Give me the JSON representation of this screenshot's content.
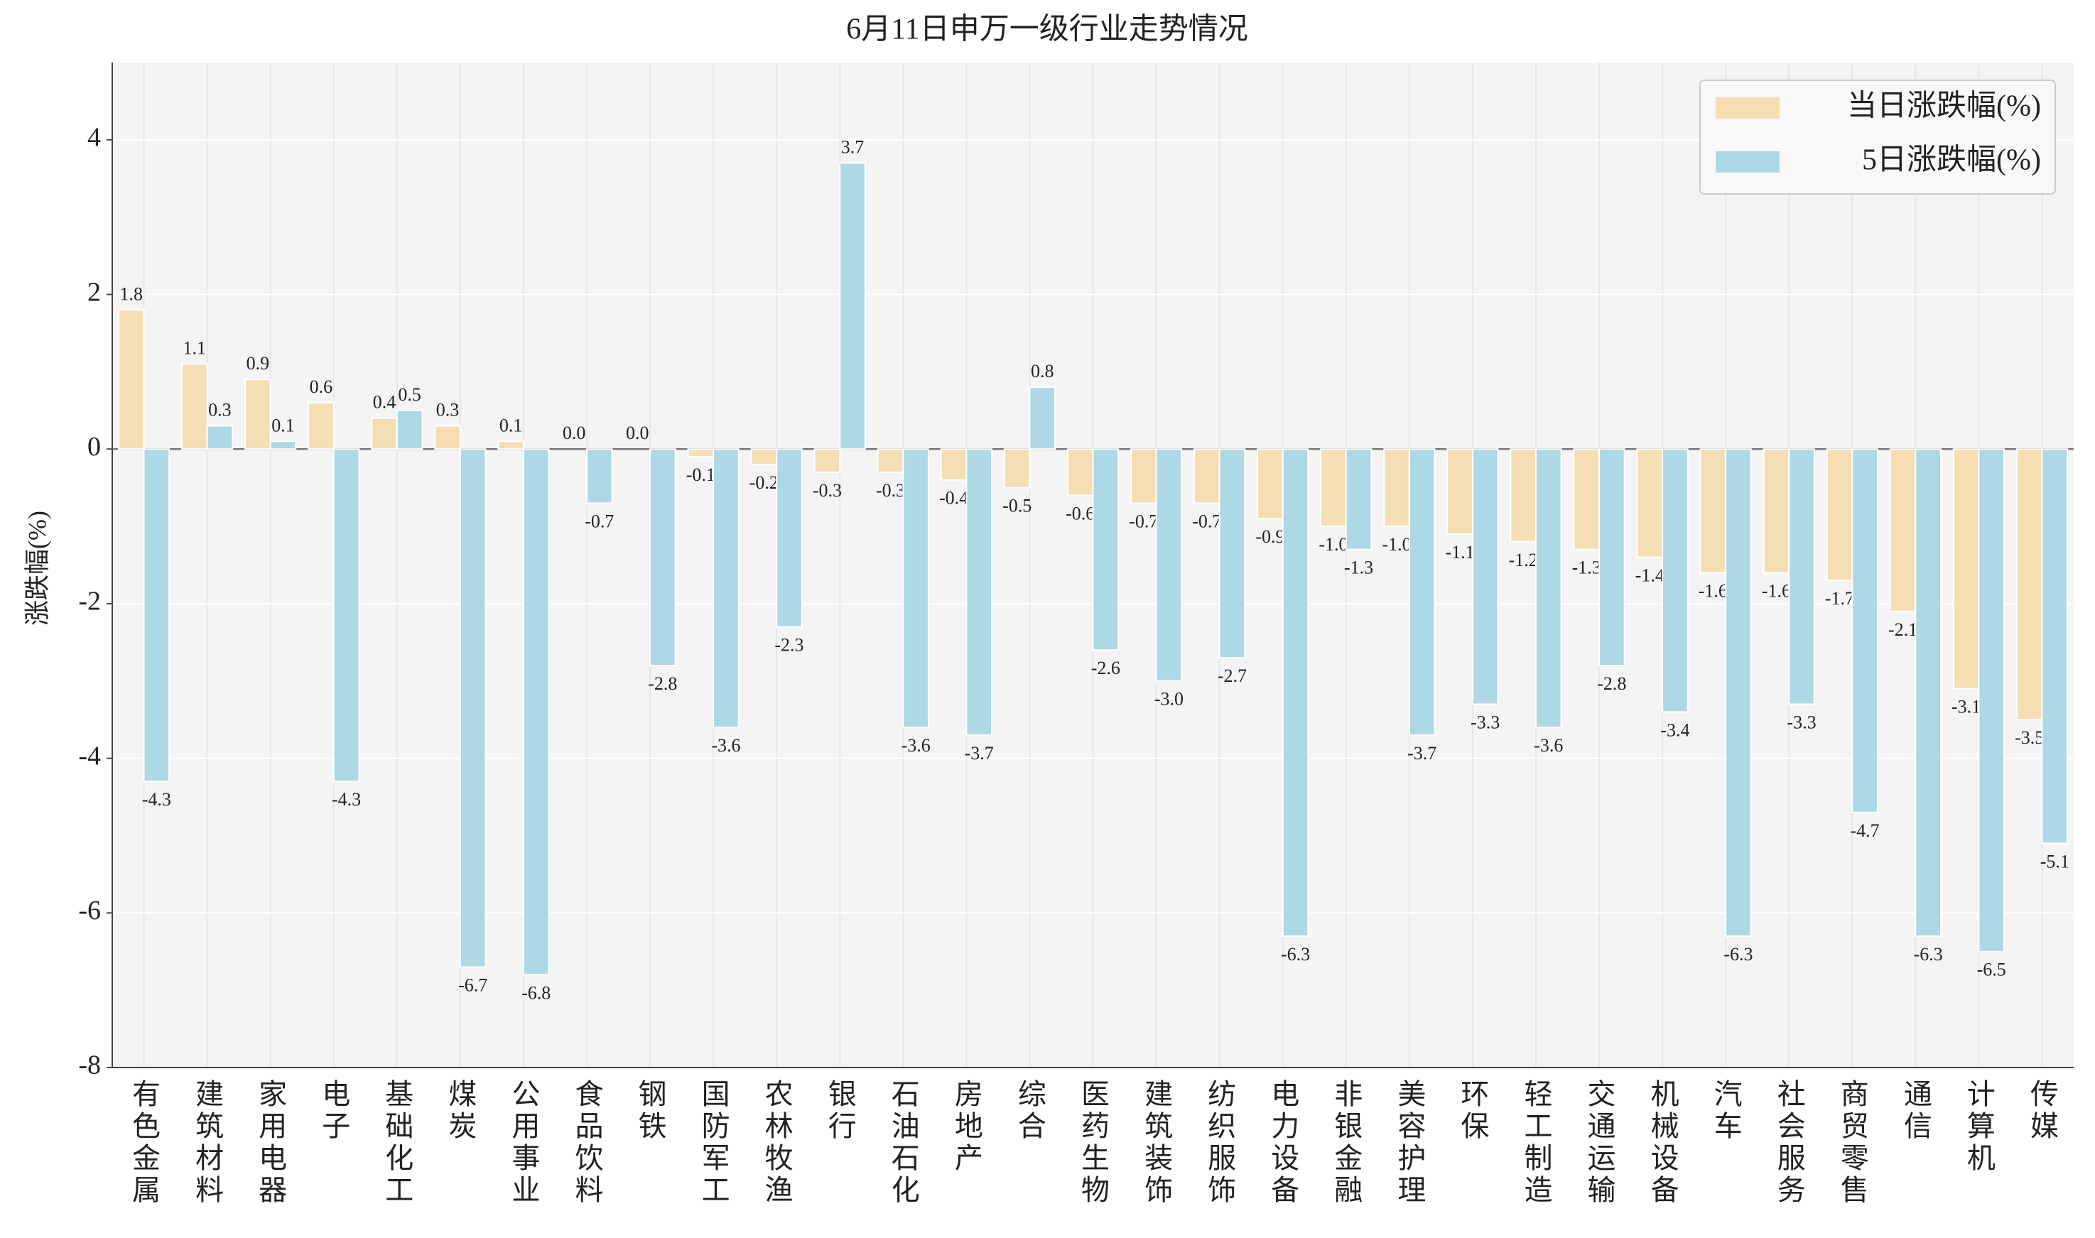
{
  "chart_data": {
    "type": "bar",
    "title": "6月11日申万一级行业走势情况",
    "y_label": "涨跌幅(%)",
    "categories": [
      "有色金属",
      "建筑材料",
      "家用电器",
      "电子",
      "基础化工",
      "煤炭",
      "公用事业",
      "食品饮料",
      "钢铁",
      "国防军工",
      "农林牧渔",
      "银行",
      "石油石化",
      "房地产",
      "综合",
      "医药生物",
      "建筑装饰",
      "纺织服饰",
      "电力设备",
      "非银金融",
      "美容护理",
      "环保",
      "轻工制造",
      "交通运输",
      "机械设备",
      "汽车",
      "社会服务",
      "商贸零售",
      "通信",
      "计算机",
      "传媒"
    ],
    "series": [
      {
        "name": "当日涨跌幅(%)",
        "color": "#f5deb3",
        "values": [
          1.8,
          1.1,
          0.9,
          0.6,
          0.4,
          0.3,
          0.1,
          0.0,
          0.0,
          -0.1,
          -0.2,
          -0.3,
          -0.3,
          -0.4,
          -0.5,
          -0.6,
          -0.7,
          -0.7,
          -0.9,
          -1.0,
          -1.0,
          -1.1,
          -1.2,
          -1.3,
          -1.4,
          -1.6,
          -1.6,
          -1.7,
          -2.1,
          -3.1,
          -3.5
        ],
        "value_labels": [
          "1.8",
          "1.1",
          "0.9",
          "0.6",
          "0.4",
          "0.3",
          "0.1",
          "0.0",
          "0.0",
          "-0.1",
          "-0.2",
          "-0.3",
          "-0.3",
          "-0.4",
          "-0.5",
          "-0.6",
          "-0.7",
          "-0.7",
          "-0.9",
          "-1.0",
          "-1.0",
          "-1.1",
          "-1.2",
          "-1.3",
          "-1.4",
          "-1.6",
          "-1.6",
          "-1.7",
          "-2.1",
          "-3.1",
          "-3.5"
        ]
      },
      {
        "name": "5日涨跌幅(%)",
        "color": "#add8e6",
        "values": [
          -4.3,
          0.3,
          0.1,
          -4.3,
          0.5,
          -6.7,
          -6.8,
          -0.7,
          -2.8,
          -3.6,
          -2.3,
          3.7,
          -3.6,
          -3.7,
          0.8,
          -2.6,
          -3.0,
          -2.7,
          -6.3,
          -1.3,
          -3.7,
          -3.3,
          -3.6,
          -2.8,
          -3.4,
          -6.3,
          -3.3,
          -4.7,
          -6.3,
          -6.5,
          -5.1
        ],
        "value_labels": [
          "-4.3",
          "0.3",
          "0.1",
          "-4.3",
          "0.5",
          "-6.7",
          "-6.8",
          "-0.7",
          "-2.8",
          "-3.6",
          "-2.3",
          "3.7",
          "-3.6",
          "-3.7",
          "0.8",
          "-2.6",
          "-3.0",
          "-2.7",
          "-6.3",
          "-1.3",
          "-3.7",
          "-3.3",
          "-3.6",
          "-2.8",
          "-3.4",
          "-6.3",
          "-3.3",
          "-4.7",
          "-6.3",
          "-6.5",
          "-5.1"
        ]
      }
    ],
    "ylim": [
      -8,
      5
    ],
    "yticks": [
      -8,
      -6,
      -4,
      -2,
      0,
      2,
      4
    ],
    "grid": true,
    "legend": "upper right"
  }
}
